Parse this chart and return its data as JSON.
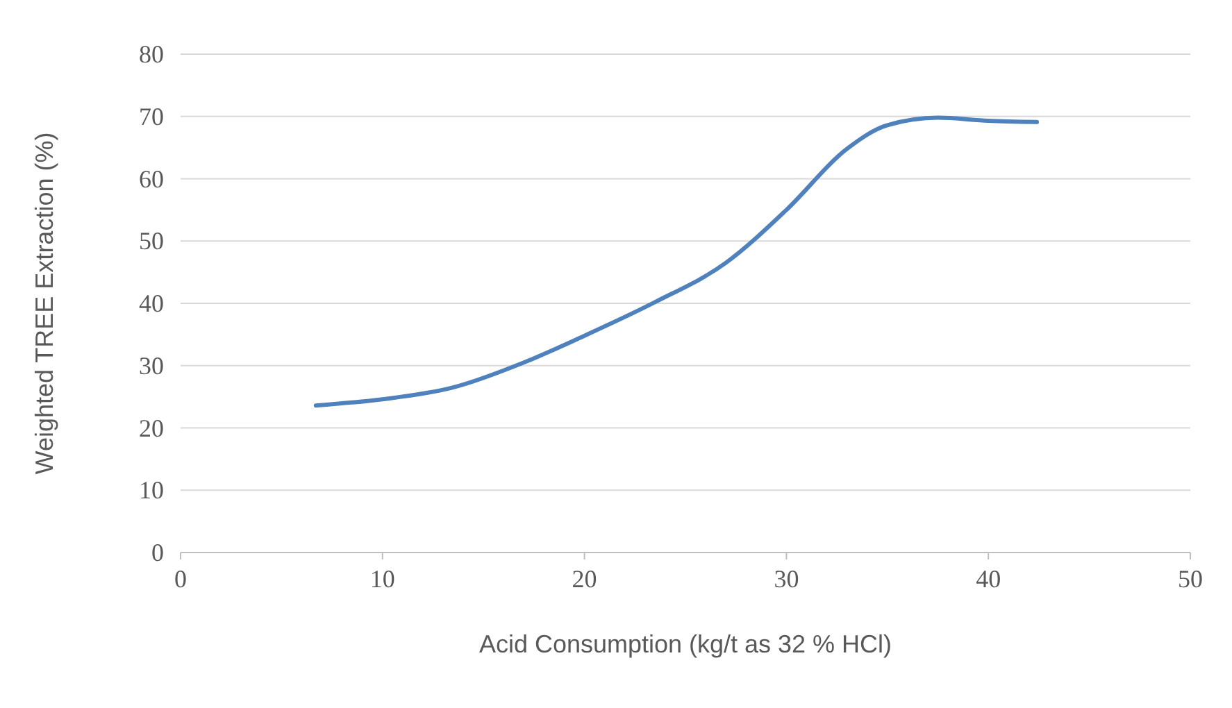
{
  "chart_data": {
    "type": "line",
    "xlabel": "Acid Consumption (kg/t as 32 % HCl)",
    "ylabel": "Weighted TREE Extraction (%)",
    "x": [
      6.7,
      10,
      13.5,
      17,
      20,
      23.5,
      27,
      30,
      33,
      35,
      37.5,
      40,
      42.4
    ],
    "series": [
      {
        "color": "#4f81bd",
        "values": [
          23.6,
          24.6,
          26.5,
          30.5,
          34.8,
          40.2,
          46.5,
          55,
          64.8,
          68.6,
          69.8,
          69.3,
          69.1
        ]
      }
    ],
    "xlim": [
      0,
      50
    ],
    "xticks": [
      0,
      10,
      20,
      30,
      40,
      50
    ],
    "ylim": [
      0,
      80
    ],
    "yticks": [
      0,
      10,
      20,
      30,
      40,
      50,
      60,
      70,
      80
    ],
    "grid": "y",
    "marker": "none",
    "line_style": "solid"
  }
}
